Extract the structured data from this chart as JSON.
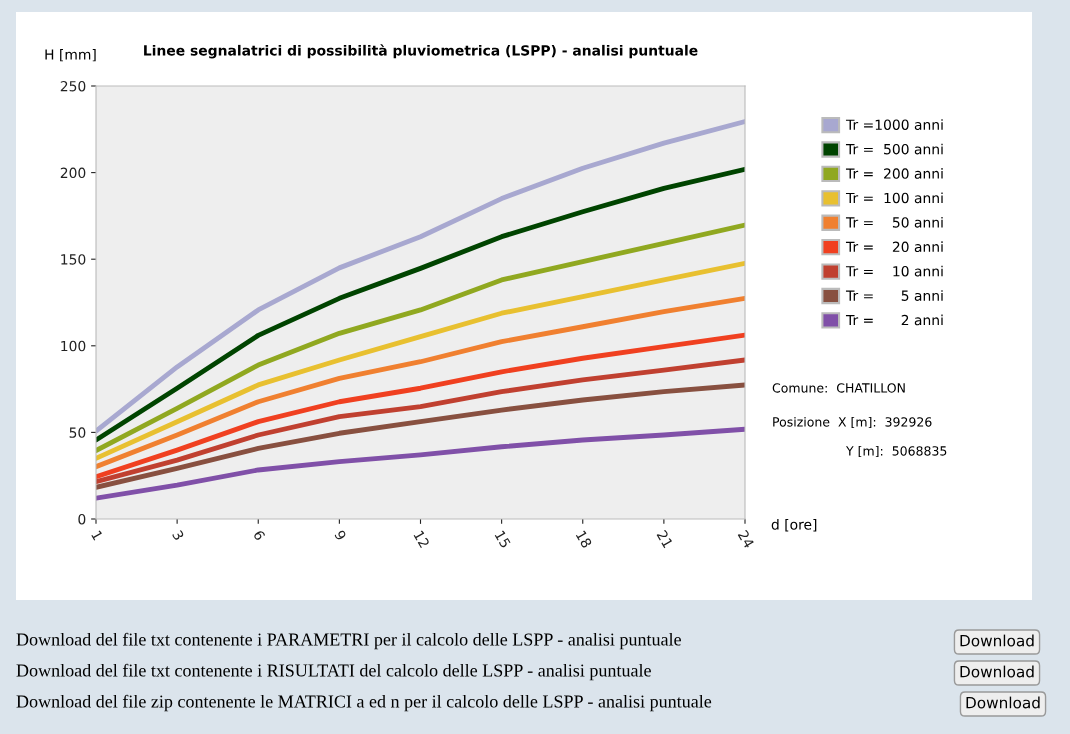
{
  "chart_data": {
    "type": "line",
    "title": "Linee segnalatrici di possibilità pluviometrica (LSPP) - analisi puntuale",
    "xlabel": "d [ore]",
    "ylabel": "H [mm]",
    "categories": [
      "1",
      "3",
      "6",
      "9",
      "12",
      "15",
      "18",
      "21",
      "24"
    ],
    "series": [
      {
        "name": "Tr =1000 anni",
        "color": "#a8a8d0",
        "values": [
          50.8,
          87.8,
          120.7,
          145,
          163,
          185,
          202.5,
          217,
          229.5
        ]
      },
      {
        "name": "Tr =  500 anni",
        "color": "#004400",
        "values": [
          45.6,
          75.5,
          106,
          127.4,
          144.7,
          163,
          177.4,
          190.9,
          201.9
        ]
      },
      {
        "name": "Tr =  200 anni",
        "color": "#90a820",
        "values": [
          39.5,
          63.9,
          88.9,
          107.2,
          120.7,
          138,
          148.6,
          159.2,
          169.7
        ]
      },
      {
        "name": "Tr =  100 anni",
        "color": "#e8c030",
        "values": [
          35,
          56.2,
          77.4,
          91.8,
          105.3,
          118.8,
          128.4,
          138,
          147.6
        ]
      },
      {
        "name": "Tr =    50 anni",
        "color": "#f08030",
        "values": [
          30.2,
          48.5,
          67.7,
          81.2,
          90.8,
          102.4,
          111,
          119.7,
          127.4
        ]
      },
      {
        "name": "Tr =    20 anni",
        "color": "#f04020",
        "values": [
          24.4,
          39.8,
          56.2,
          67.7,
          75.5,
          85,
          92.8,
          99.5,
          106.2
        ]
      },
      {
        "name": "Tr =    10 anni",
        "color": "#c04030",
        "values": [
          21.5,
          34,
          48.5,
          59.1,
          64.9,
          73.5,
          80.3,
          86,
          91.8
        ]
      },
      {
        "name": "Tr =      5 anni",
        "color": "#885040",
        "values": [
          18.3,
          29.2,
          40.8,
          49.5,
          56.2,
          62.9,
          68.7,
          73.5,
          77.4
        ]
      },
      {
        "name": "Tr =      2 anni",
        "color": "#8050a8",
        "values": [
          12,
          19.6,
          28.3,
          33.1,
          37,
          41.7,
          45.6,
          48.5,
          51.8
        ]
      }
    ],
    "ylim": [
      0,
      250
    ],
    "yticks": [
      0,
      50,
      100,
      150,
      200,
      250
    ],
    "legend": "right",
    "grid": false,
    "marker": "none",
    "line_style": "solid",
    "annotations": [
      "Comune:  CHATILLON",
      "Posizione  X [m]:  392926",
      "Y [m]:  5068835",
      "Download del file txt contenente i PARAMETRI per il calcolo delle LSPP - analisi puntuale",
      "Download del file txt contenente i RISULTATI del calcolo delle LSPP - analisi puntuale",
      "Download del file zip contenente le MATRICI a ed n per il calcolo delle LSPP - analisi puntuale",
      "Download",
      "Download",
      "Download"
    ]
  }
}
